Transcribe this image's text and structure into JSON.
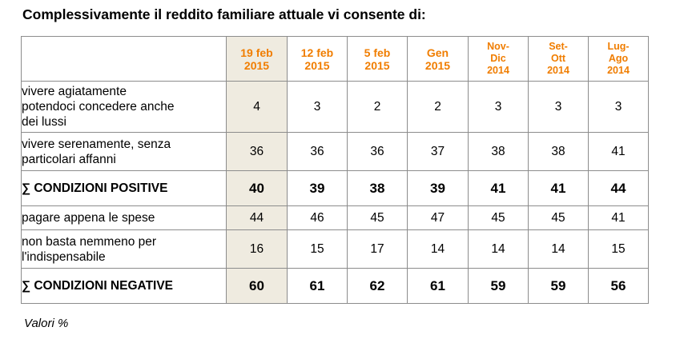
{
  "title": "Complessivamente il reddito familiare attuale vi consente di:",
  "footnote": "Valori %",
  "colors": {
    "header_text": "#f07d00",
    "highlight_column": "#efebe0",
    "border": "#8c8c8c"
  },
  "chart_data": {
    "type": "table",
    "title": "Complessivamente il reddito familiare attuale vi consente di:",
    "columns": [
      [
        "19 feb",
        "2015"
      ],
      [
        "12 feb",
        "2015"
      ],
      [
        "5 feb",
        "2015"
      ],
      [
        "Gen",
        "2015"
      ],
      [
        "Nov-",
        "Dic",
        "2014"
      ],
      [
        "Set-",
        "Ott",
        "2014"
      ],
      [
        "Lug-",
        "Ago",
        "2014"
      ]
    ],
    "highlighted_column": 0,
    "rows": [
      {
        "label": [
          "vivere agiatamente",
          "potendoci concedere anche",
          "dei lussi"
        ],
        "values": [
          4,
          3,
          2,
          2,
          3,
          3,
          3
        ],
        "bold": false
      },
      {
        "label": [
          "vivere serenamente, senza",
          "particolari affanni"
        ],
        "values": [
          36,
          36,
          36,
          37,
          38,
          38,
          41
        ],
        "bold": false
      },
      {
        "label": [
          "∑ CONDIZIONI POSITIVE"
        ],
        "values": [
          40,
          39,
          38,
          39,
          41,
          41,
          44
        ],
        "bold": true
      },
      {
        "label": [
          "pagare appena le spese"
        ],
        "values": [
          44,
          46,
          45,
          47,
          45,
          45,
          41
        ],
        "bold": false
      },
      {
        "label": [
          "non basta nemmeno per",
          "l'indispensabile"
        ],
        "values": [
          16,
          15,
          17,
          14,
          14,
          14,
          15
        ],
        "bold": false
      },
      {
        "label": [
          "∑ CONDIZIONI NEGATIVE"
        ],
        "values": [
          60,
          61,
          62,
          61,
          59,
          59,
          56
        ],
        "bold": true
      }
    ]
  }
}
